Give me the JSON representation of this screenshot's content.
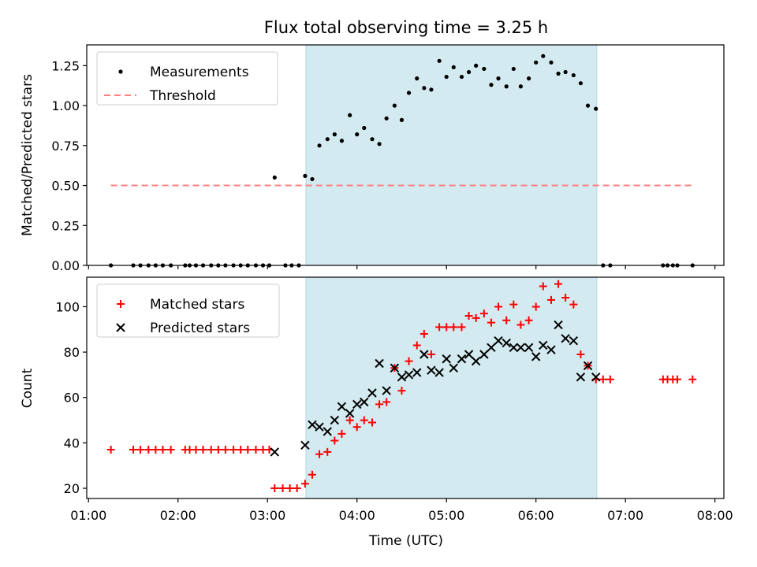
{
  "chart_data": {
    "type": "scatter",
    "title": "Flux total observing time = 3.25 h",
    "xlabel": "Time (UTC)",
    "x_ticks": [
      "01:00",
      "02:00",
      "03:00",
      "04:00",
      "05:00",
      "06:00",
      "07:00",
      "08:00"
    ],
    "x_range_hours": [
      0.98,
      8.1
    ],
    "observing_window_hours": [
      3.43,
      6.68
    ],
    "shade_color": "#d3eaf0",
    "panels": [
      {
        "id": "top",
        "ylabel": "Matched/Predicted stars",
        "ylim": [
          0,
          1.38
        ],
        "y_ticks": [
          "0.00",
          "0.25",
          "0.50",
          "0.75",
          "1.00",
          "1.25"
        ],
        "legend": "top-left",
        "series": [
          {
            "name": "Measurements",
            "marker": "dot",
            "color": "#000000",
            "points": [
              [
                1.25,
                0
              ],
              [
                1.5,
                0
              ],
              [
                1.58,
                0
              ],
              [
                1.67,
                0
              ],
              [
                1.75,
                0
              ],
              [
                1.83,
                0
              ],
              [
                1.92,
                0
              ],
              [
                2.08,
                0
              ],
              [
                2.13,
                0
              ],
              [
                2.2,
                0
              ],
              [
                2.28,
                0
              ],
              [
                2.37,
                0
              ],
              [
                2.45,
                0
              ],
              [
                2.53,
                0
              ],
              [
                2.62,
                0
              ],
              [
                2.7,
                0
              ],
              [
                2.78,
                0
              ],
              [
                2.87,
                0
              ],
              [
                2.95,
                0
              ],
              [
                3.02,
                0
              ],
              [
                3.08,
                0.55
              ],
              [
                3.2,
                0
              ],
              [
                3.27,
                0
              ],
              [
                3.35,
                0
              ],
              [
                3.42,
                0.56
              ],
              [
                3.5,
                0.54
              ],
              [
                3.58,
                0.75
              ],
              [
                3.67,
                0.79
              ],
              [
                3.75,
                0.82
              ],
              [
                3.83,
                0.78
              ],
              [
                3.92,
                0.94
              ],
              [
                4.0,
                0.82
              ],
              [
                4.08,
                0.86
              ],
              [
                4.17,
                0.79
              ],
              [
                4.25,
                0.76
              ],
              [
                4.33,
                0.92
              ],
              [
                4.42,
                1.0
              ],
              [
                4.5,
                0.91
              ],
              [
                4.58,
                1.08
              ],
              [
                4.67,
                1.17
              ],
              [
                4.75,
                1.11
              ],
              [
                4.83,
                1.1
              ],
              [
                4.92,
                1.28
              ],
              [
                5.0,
                1.18
              ],
              [
                5.08,
                1.24
              ],
              [
                5.17,
                1.18
              ],
              [
                5.25,
                1.21
              ],
              [
                5.33,
                1.25
              ],
              [
                5.42,
                1.23
              ],
              [
                5.5,
                1.13
              ],
              [
                5.58,
                1.17
              ],
              [
                5.67,
                1.12
              ],
              [
                5.75,
                1.23
              ],
              [
                5.83,
                1.12
              ],
              [
                5.92,
                1.17
              ],
              [
                6.0,
                1.27
              ],
              [
                6.08,
                1.31
              ],
              [
                6.17,
                1.27
              ],
              [
                6.25,
                1.2
              ],
              [
                6.33,
                1.21
              ],
              [
                6.42,
                1.19
              ],
              [
                6.5,
                1.14
              ],
              [
                6.58,
                1.0
              ],
              [
                6.67,
                0.98
              ],
              [
                6.75,
                0
              ],
              [
                6.83,
                0
              ],
              [
                7.42,
                0
              ],
              [
                7.47,
                0
              ],
              [
                7.53,
                0
              ],
              [
                7.58,
                0
              ],
              [
                7.75,
                0
              ]
            ]
          },
          {
            "name": "Threshold",
            "marker": "dashed-line",
            "color": "#ff7f7f",
            "points": [
              [
                1.25,
                0.5
              ],
              [
                7.75,
                0.5
              ]
            ]
          }
        ]
      },
      {
        "id": "bottom",
        "ylabel": "Count",
        "ylim": [
          15.5,
          113
        ],
        "y_ticks": [
          "20",
          "40",
          "60",
          "80",
          "100"
        ],
        "legend": "top-left",
        "series": [
          {
            "name": "Matched stars",
            "marker": "plus",
            "color": "#ff0000",
            "points": [
              [
                1.25,
                37
              ],
              [
                1.5,
                37
              ],
              [
                1.58,
                37
              ],
              [
                1.67,
                37
              ],
              [
                1.75,
                37
              ],
              [
                1.83,
                37
              ],
              [
                1.92,
                37
              ],
              [
                2.08,
                37
              ],
              [
                2.13,
                37
              ],
              [
                2.2,
                37
              ],
              [
                2.28,
                37
              ],
              [
                2.37,
                37
              ],
              [
                2.45,
                37
              ],
              [
                2.53,
                37
              ],
              [
                2.62,
                37
              ],
              [
                2.7,
                37
              ],
              [
                2.78,
                37
              ],
              [
                2.87,
                37
              ],
              [
                2.95,
                37
              ],
              [
                3.02,
                37
              ],
              [
                3.08,
                20
              ],
              [
                3.17,
                20
              ],
              [
                3.25,
                20
              ],
              [
                3.33,
                20
              ],
              [
                3.42,
                22
              ],
              [
                3.5,
                26
              ],
              [
                3.58,
                35
              ],
              [
                3.67,
                36
              ],
              [
                3.75,
                41
              ],
              [
                3.83,
                44
              ],
              [
                3.92,
                50
              ],
              [
                4.0,
                47
              ],
              [
                4.08,
                50
              ],
              [
                4.17,
                49
              ],
              [
                4.25,
                57
              ],
              [
                4.33,
                58
              ],
              [
                4.42,
                73
              ],
              [
                4.5,
                63
              ],
              [
                4.58,
                76
              ],
              [
                4.67,
                83
              ],
              [
                4.75,
                88
              ],
              [
                4.83,
                79
              ],
              [
                4.92,
                91
              ],
              [
                5.0,
                91
              ],
              [
                5.08,
                91
              ],
              [
                5.17,
                91
              ],
              [
                5.25,
                96
              ],
              [
                5.33,
                95
              ],
              [
                5.42,
                97
              ],
              [
                5.5,
                93
              ],
              [
                5.58,
                100
              ],
              [
                5.67,
                94
              ],
              [
                5.75,
                101
              ],
              [
                5.83,
                92
              ],
              [
                5.92,
                94
              ],
              [
                6.0,
                100
              ],
              [
                6.08,
                109
              ],
              [
                6.17,
                103
              ],
              [
                6.25,
                110
              ],
              [
                6.33,
                104
              ],
              [
                6.42,
                101
              ],
              [
                6.5,
                79
              ],
              [
                6.58,
                74
              ],
              [
                6.67,
                68
              ],
              [
                6.75,
                68
              ],
              [
                6.83,
                68
              ],
              [
                7.42,
                68
              ],
              [
                7.47,
                68
              ],
              [
                7.53,
                68
              ],
              [
                7.58,
                68
              ],
              [
                7.75,
                68
              ]
            ]
          },
          {
            "name": "Predicted stars",
            "marker": "x",
            "color": "#000000",
            "points": [
              [
                3.08,
                36
              ],
              [
                3.42,
                39
              ],
              [
                3.5,
                48
              ],
              [
                3.58,
                47
              ],
              [
                3.67,
                45
              ],
              [
                3.75,
                50
              ],
              [
                3.83,
                56
              ],
              [
                3.92,
                53
              ],
              [
                4.0,
                57
              ],
              [
                4.08,
                58
              ],
              [
                4.17,
                62
              ],
              [
                4.25,
                75
              ],
              [
                4.33,
                63
              ],
              [
                4.42,
                73
              ],
              [
                4.5,
                69
              ],
              [
                4.58,
                70
              ],
              [
                4.67,
                71
              ],
              [
                4.75,
                79
              ],
              [
                4.83,
                72
              ],
              [
                4.92,
                71
              ],
              [
                5.0,
                77
              ],
              [
                5.08,
                73
              ],
              [
                5.17,
                77
              ],
              [
                5.25,
                79
              ],
              [
                5.33,
                76
              ],
              [
                5.42,
                79
              ],
              [
                5.5,
                82
              ],
              [
                5.58,
                85
              ],
              [
                5.67,
                84
              ],
              [
                5.75,
                82
              ],
              [
                5.83,
                82
              ],
              [
                5.92,
                82
              ],
              [
                6.0,
                78
              ],
              [
                6.08,
                83
              ],
              [
                6.17,
                81
              ],
              [
                6.25,
                92
              ],
              [
                6.33,
                86
              ],
              [
                6.42,
                85
              ],
              [
                6.5,
                69
              ],
              [
                6.58,
                74
              ],
              [
                6.67,
                69
              ]
            ]
          }
        ]
      }
    ]
  }
}
